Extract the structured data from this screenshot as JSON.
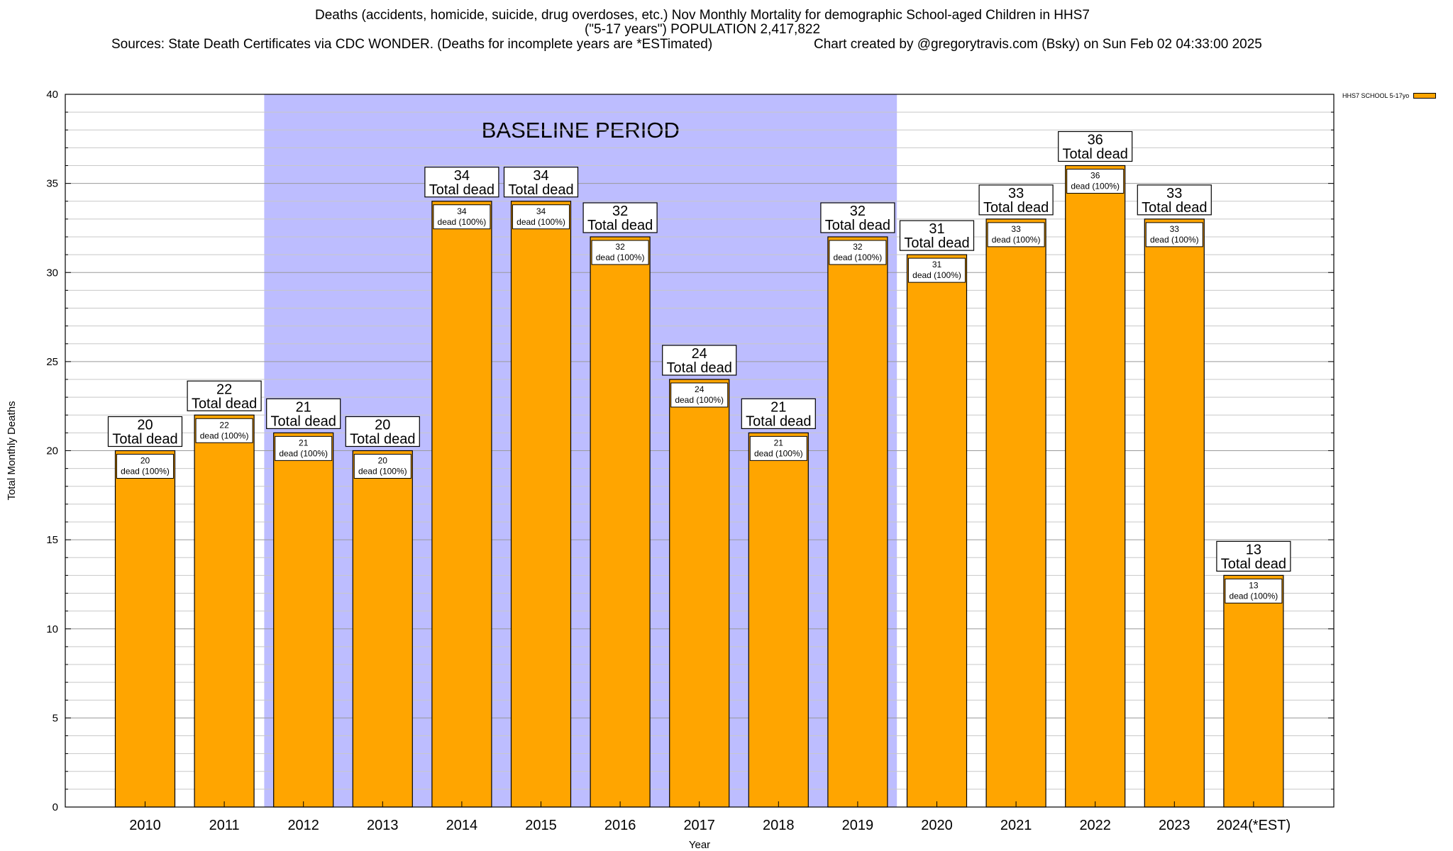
{
  "chart_data": {
    "type": "bar",
    "title": "Deaths (accidents, homicide, suicide, drug overdoses, etc.) Nov Monthly Mortality for demographic School-aged Children in HHS7",
    "subtitle": "(\"5-17 years\") POPULATION 2,417,822",
    "sources": "Sources: State Death Certificates via CDC WONDER. (Deaths for incomplete years are *ESTimated)",
    "credit": "Chart created by @gregorytravis.com (Bsky) on Sun Feb 02 04:33:00 2025",
    "xlabel": "Year",
    "ylabel": "Total Monthly Deaths",
    "ylim": [
      0,
      40
    ],
    "yticks": [
      0,
      5,
      10,
      15,
      20,
      25,
      30,
      35,
      40
    ],
    "grid": true,
    "legend_position": "top-right",
    "series": [
      {
        "name": "HHS7 SCHOOL 5-17yo",
        "color": "#FFA500",
        "values": [
          20,
          22,
          21,
          20,
          34,
          34,
          32,
          24,
          21,
          32,
          31,
          33,
          36,
          33,
          13
        ]
      }
    ],
    "categories": [
      "2010",
      "2011",
      "2012",
      "2013",
      "2014",
      "2015",
      "2016",
      "2017",
      "2018",
      "2019",
      "2020",
      "2021",
      "2022",
      "2023",
      "2024(*EST)"
    ],
    "total_label_suffix": "Total dead",
    "inner_label_suffix": "dead (100%)",
    "baseline_period": {
      "label": "BASELINE PERIOD",
      "start": "2012",
      "end": "2019",
      "color": "#BDBDFF"
    }
  }
}
